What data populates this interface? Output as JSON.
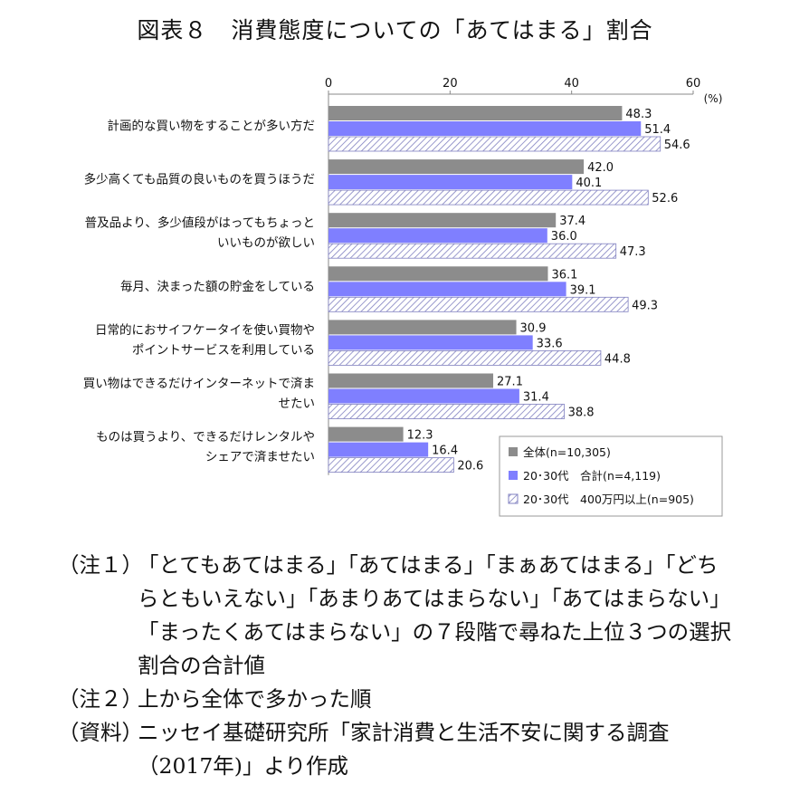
{
  "title": "図表８　消費態度についての「あてはまる」割合",
  "chart_data": {
    "type": "bar",
    "orientation": "horizontal",
    "unit_label": "(%)",
    "xlim": [
      0,
      60
    ],
    "ticks": [
      0,
      20,
      40,
      60
    ],
    "grid": false,
    "legend_position": "bottom-right inside",
    "categories": [
      [
        "計画的な買い物をすることが多い方だ"
      ],
      [
        "多少高くても品質の良いものを買うほうだ"
      ],
      [
        "普及品より、多少値段がはってもちょっと",
        "いいものが欲しい"
      ],
      [
        "毎月、決まった額の貯金をしている"
      ],
      [
        "日常的におサイフケータイを使い買物や",
        "ポイントサービスを利用している"
      ],
      [
        "買い物はできるだけインターネットで済ま",
        "せたい"
      ],
      [
        "ものは買うより、できるだけレンタルや",
        "シェアで済ませたい"
      ]
    ],
    "series": [
      {
        "name": "全体(n=10,305)",
        "color": "#8c8c8c",
        "pattern": "solid",
        "values": [
          48.3,
          42.0,
          37.4,
          36.1,
          30.9,
          27.1,
          12.3
        ]
      },
      {
        "name": "20･30代　合計(n=4,119)",
        "color": "#7f7fff",
        "pattern": "solid",
        "values": [
          51.4,
          40.1,
          36.0,
          39.1,
          33.6,
          31.4,
          16.4
        ]
      },
      {
        "name": "20･30代　400万円以上(n=905)",
        "color": "#8080c0",
        "pattern": "hatch",
        "values": [
          54.6,
          52.6,
          47.3,
          49.3,
          44.8,
          38.8,
          20.6
        ]
      }
    ]
  },
  "notes": [
    {
      "tag": "（注１）",
      "text": "「とてもあてはまる」「あてはまる」「まぁあてはまる」「どちらともいえない」「あまりあてはまらない」「あてはまらない」「まったくあてはまらない」の７段階で尋ねた上位３つの選択割合の合計値"
    },
    {
      "tag": "（注２）",
      "text": "上から全体で多かった順"
    },
    {
      "tag": "（資料）",
      "text": "ニッセイ基礎研究所「家計消費と生活不安に関する調査（2017年)」より作成"
    }
  ]
}
